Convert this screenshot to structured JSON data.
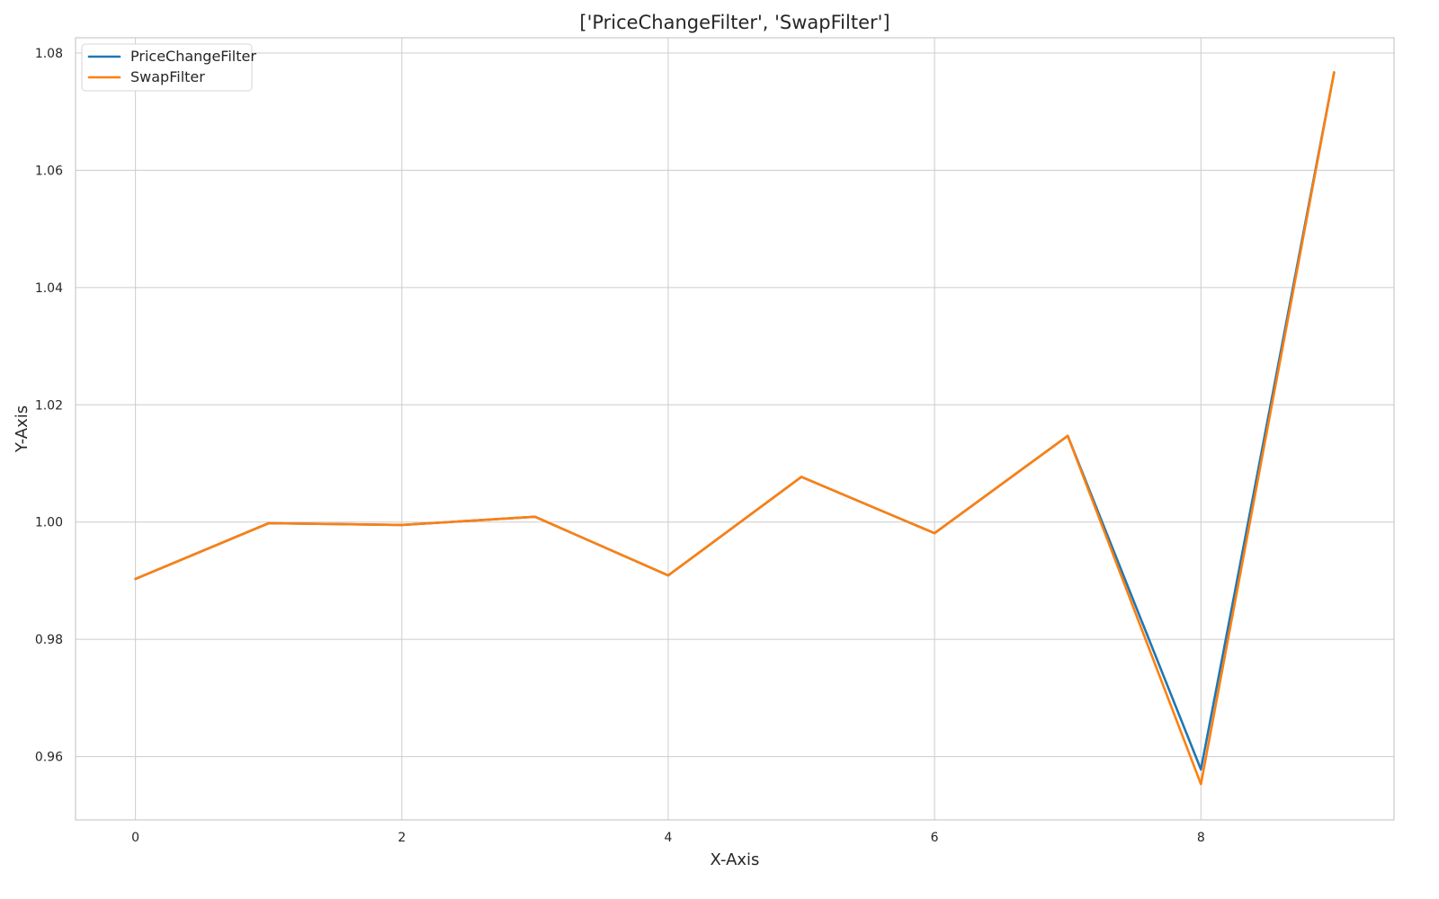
{
  "chart_data": {
    "type": "line",
    "title": "['PriceChangeFilter', 'SwapFilter']",
    "xlabel": "X-Axis",
    "ylabel": "Y-Axis",
    "x": [
      0,
      1,
      2,
      3,
      4,
      5,
      6,
      7,
      8,
      9
    ],
    "xlim": [
      -0.45,
      9.45
    ],
    "ylim": [
      0.9492,
      1.0826
    ],
    "xticks": [
      0,
      2,
      4,
      6,
      8
    ],
    "xtick_labels": [
      "0",
      "2",
      "4",
      "6",
      "8"
    ],
    "yticks": [
      0.96,
      0.98,
      1.0,
      1.02,
      1.04,
      1.06,
      1.08
    ],
    "ytick_labels": [
      "0.96",
      "0.98",
      "1.00",
      "1.02",
      "1.04",
      "1.06",
      "1.08"
    ],
    "grid": true,
    "legend_position": "top-left",
    "series": [
      {
        "name": "PriceChangeFilter",
        "color": "#1f77b4",
        "values": [
          0.9903,
          0.9998,
          0.9995,
          1.0009,
          0.9909,
          1.0077,
          0.9981,
          1.0147,
          0.9578,
          1.0767
        ]
      },
      {
        "name": "SwapFilter",
        "color": "#ff7f0e",
        "values": [
          0.9903,
          0.9998,
          0.9995,
          1.0009,
          0.9909,
          1.0077,
          0.9981,
          1.0147,
          0.9553,
          1.0767
        ]
      }
    ]
  }
}
